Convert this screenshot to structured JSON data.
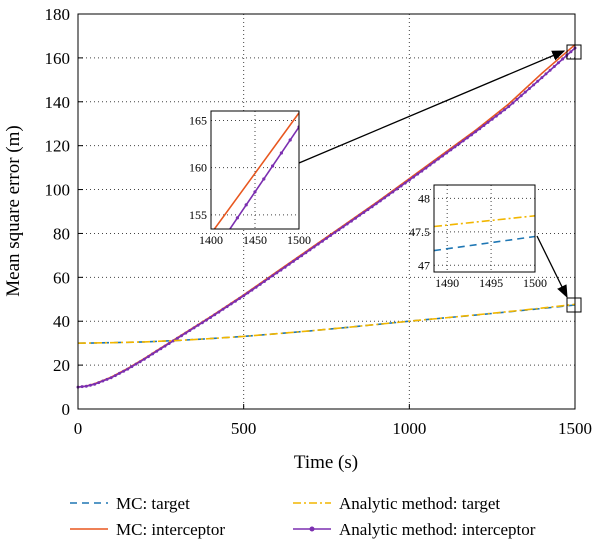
{
  "chart_data": {
    "type": "line",
    "xlabel": "Time (s)",
    "ylabel": "Mean square error (m)",
    "xlim": [
      0,
      1500
    ],
    "ylim": [
      0,
      180
    ],
    "x_ticks": [
      0,
      500,
      1000,
      1500
    ],
    "y_ticks": [
      0,
      20,
      40,
      60,
      80,
      100,
      120,
      140,
      160,
      180
    ],
    "grid": "dotted",
    "legend_position": "bottom",
    "series": [
      {
        "name": "MC: target",
        "color": "#1f77b4",
        "style": "dashed",
        "x": [
          0,
          100,
          200,
          300,
          400,
          500,
          600,
          700,
          800,
          900,
          1000,
          1100,
          1200,
          1300,
          1400,
          1500
        ],
        "y": [
          30,
          30.2,
          30.6,
          31.2,
          32.1,
          33.1,
          34.3,
          35.6,
          37.0,
          38.5,
          40.0,
          41.4,
          42.8,
          44.3,
          45.8,
          47.4
        ]
      },
      {
        "name": "MC: interceptor",
        "color": "#e8571f",
        "style": "solid",
        "x": [
          0,
          25,
          50,
          100,
          150,
          200,
          250,
          300,
          400,
          500,
          600,
          700,
          800,
          900,
          1000,
          1100,
          1200,
          1300,
          1400,
          1500
        ],
        "y": [
          10,
          10.5,
          11.5,
          14.5,
          18.5,
          23,
          27.8,
          32.5,
          42,
          52,
          62.5,
          73,
          83.5,
          94,
          105,
          116,
          127,
          139,
          153,
          166
        ]
      },
      {
        "name": "Analytic method: target",
        "color": "#f2b600",
        "style": "dashdot",
        "x": [
          0,
          100,
          200,
          300,
          400,
          500,
          600,
          700,
          800,
          900,
          1000,
          1100,
          1200,
          1300,
          1400,
          1500
        ],
        "y": [
          30,
          30.2,
          30.6,
          31.2,
          32.1,
          33.1,
          34.3,
          35.6,
          37.0,
          38.5,
          40.0,
          41.4,
          42.9,
          44.4,
          46.0,
          47.7
        ]
      },
      {
        "name": "Analytic method: interceptor",
        "color": "#7b2fb0",
        "style": "solid-marker",
        "x": [
          0,
          25,
          50,
          100,
          150,
          200,
          250,
          300,
          400,
          500,
          600,
          700,
          800,
          900,
          1000,
          1100,
          1200,
          1300,
          1400,
          1500
        ],
        "y": [
          10,
          10.4,
          11.3,
          14.2,
          18.2,
          22.7,
          27.5,
          32.2,
          41.7,
          51.6,
          62.0,
          72.5,
          83.0,
          93.5,
          104.3,
          115.3,
          126.3,
          137.8,
          151,
          164.5
        ]
      }
    ],
    "insets": [
      {
        "xlim": [
          1400,
          1500
        ],
        "ylim": [
          153.5,
          166
        ],
        "x_ticks": [
          1400,
          1450,
          1500
        ],
        "y_ticks": [
          155,
          160,
          165
        ],
        "series": [
          {
            "name": "MC: interceptor",
            "color": "#e8571f",
            "style": "solid",
            "x": [
              1400,
              1500
            ],
            "y": [
              153,
              165.8
            ]
          },
          {
            "name": "Analytic method: interceptor",
            "color": "#7b2fb0",
            "style": "solid-marker",
            "x": [
              1420,
              1500
            ],
            "y": [
              153.3,
              164.3
            ]
          }
        ]
      },
      {
        "xlim": [
          1488.5,
          1500
        ],
        "ylim": [
          46.9,
          48.2
        ],
        "x_ticks": [
          1490,
          1495,
          1500
        ],
        "y_ticks": [
          47,
          47.5,
          48
        ],
        "series": [
          {
            "name": "Analytic method: target",
            "color": "#f2b600",
            "style": "dashdot",
            "x": [
              1488.5,
              1500
            ],
            "y": [
              47.58,
              47.74
            ]
          },
          {
            "name": "MC: target",
            "color": "#1f77b4",
            "style": "dashed",
            "x": [
              1488.5,
              1500
            ],
            "y": [
              47.22,
              47.43
            ]
          }
        ]
      }
    ]
  }
}
